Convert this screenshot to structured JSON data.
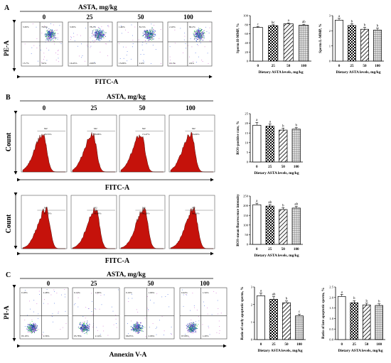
{
  "panels": {
    "A": {
      "letter": "A",
      "header": "ASTA, mg/kg",
      "doses": [
        "0",
        "25",
        "50",
        "100"
      ],
      "y_axis_label": "PE-A",
      "x_axis_label": "FITC-A",
      "quadrant_stats": [
        [
          "3.30%",
          "76.9%",
          "15.7%",
          "3.0%"
        ],
        [
          "3.30%",
          "78.2%",
          "16.45%",
          "2.06%"
        ],
        [
          "1.40%",
          "81.5%",
          "15.09%",
          "2.4%"
        ],
        [
          "2.10%",
          "80.2%",
          "15.1%",
          "2.6%"
        ]
      ]
    },
    "B": {
      "letter": "B",
      "header": "ASTA, mg/kg",
      "doses": [
        "0",
        "25",
        "50",
        "100"
      ],
      "y_axis_label": "Count",
      "x_axis_label_1": "FITC-A",
      "x_axis_label_2": "FITC-A",
      "row1_stats": [
        "20.53%",
        "18.98%",
        "15.47%",
        "16.69%"
      ],
      "row2_stats": [
        "97.70%",
        "98.89%",
        "96.20%",
        "96.30%"
      ]
    },
    "C": {
      "letter": "C",
      "header": "ASTA, mg/kg",
      "doses": [
        "0",
        "25",
        "50",
        "100"
      ],
      "y_axis_label": "PI-A",
      "x_axis_label": "Annexin V-A",
      "quadrant_stats": [
        [
          "0.18%",
          "2.48%",
          "95.10%",
          "2.56%"
        ],
        [
          "0.13%",
          "1.89%",
          "95.78%",
          "2.14%"
        ],
        [
          "0.19%",
          "1.66%",
          "96.05%",
          "2.06%"
        ],
        [
          "0.42%",
          "1.34%",
          "97.08%",
          "1.20%"
        ]
      ]
    }
  },
  "chart_data": [
    {
      "id": "sperm-hmmp",
      "type": "bar",
      "categories": [
        "0",
        "25",
        "50",
        "100"
      ],
      "values": [
        74,
        78,
        82,
        79
      ],
      "errors": [
        2,
        2,
        2,
        2
      ],
      "letters": [
        "c",
        "bc",
        "a",
        "ab"
      ],
      "ylabel": "Sperm H-MMP, %",
      "xlabel": "Dietary ASTA levels, mg/kg",
      "ylim": [
        0,
        100
      ],
      "yticks": [
        "0",
        "20",
        "40",
        "60",
        "80",
        "100"
      ],
      "grid": false
    },
    {
      "id": "sperm-lmmp",
      "type": "bar",
      "categories": [
        "0",
        "25",
        "50",
        "100"
      ],
      "values": [
        2.7,
        2.35,
        2.1,
        2.05
      ],
      "errors": [
        0.12,
        0.12,
        0.12,
        0.12
      ],
      "letters": [
        "a",
        "b",
        "b",
        "b"
      ],
      "ylabel": "Sperm L-MMP, %",
      "xlabel": "Dietary ASTA levels, mg/kg",
      "ylim": [
        0,
        3
      ],
      "yticks": [
        "0",
        "1",
        "2",
        "3"
      ],
      "grid": false
    },
    {
      "id": "ros-positive",
      "type": "bar",
      "categories": [
        "0",
        "25",
        "50",
        "100"
      ],
      "values": [
        19,
        18.5,
        16.5,
        17
      ],
      "errors": [
        1.5,
        1.2,
        1.0,
        0.8
      ],
      "letters": [
        "a",
        "a",
        "b",
        "b"
      ],
      "ylabel": "ROS-positive rate, %",
      "xlabel": "Dietary ASTA levels, mg/kg",
      "ylim": [
        0,
        25
      ],
      "yticks": [
        "0",
        "5",
        "10",
        "15",
        "20",
        "25"
      ],
      "grid": false
    },
    {
      "id": "ros-mean",
      "type": "bar",
      "categories": [
        "0",
        "25",
        "50",
        "100"
      ],
      "values": [
        205,
        198,
        180,
        188
      ],
      "errors": [
        8,
        8,
        10,
        8
      ],
      "letters": [
        "a",
        "ab",
        "b",
        "ab"
      ],
      "ylabel": "ROS-mean fluorescence intensity",
      "xlabel": "Dietary ASTA levels, mg/kg",
      "ylim": [
        0,
        250
      ],
      "yticks": [
        "0",
        "50",
        "100",
        "150",
        "200",
        "250"
      ],
      "grid": false
    },
    {
      "id": "early-apoptotic",
      "type": "bar",
      "categories": [
        "0",
        "25",
        "50",
        "100"
      ],
      "values": [
        2.5,
        2.3,
        2.1,
        1.35
      ],
      "errors": [
        0.15,
        0.15,
        0.1,
        0.1
      ],
      "letters": [
        "a",
        "ab",
        "b",
        "c"
      ],
      "ylabel": "Ratio of early apoptotic sperm, %",
      "xlabel": "Dietary ASTA levels, mg/kg",
      "ylim": [
        0,
        3
      ],
      "yticks": [
        "0",
        "1",
        "2",
        "3"
      ],
      "grid": false
    },
    {
      "id": "late-apoptotic",
      "type": "bar",
      "categories": [
        "0",
        "25",
        "50",
        "100"
      ],
      "values": [
        2.05,
        1.75,
        1.65,
        1.62
      ],
      "errors": [
        0.1,
        0.1,
        0.08,
        0.08
      ],
      "letters": [
        "a",
        "b",
        "b",
        "b"
      ],
      "ylabel": "Ratio of late apoptotic sperm, %",
      "xlabel": "Dietary ASTA levels, mg/kg",
      "ylim": [
        0,
        2.5
      ],
      "yticks": [
        "0.0",
        "0.5",
        "1.0",
        "1.5",
        "2.0",
        "2.5"
      ],
      "grid": false
    }
  ]
}
